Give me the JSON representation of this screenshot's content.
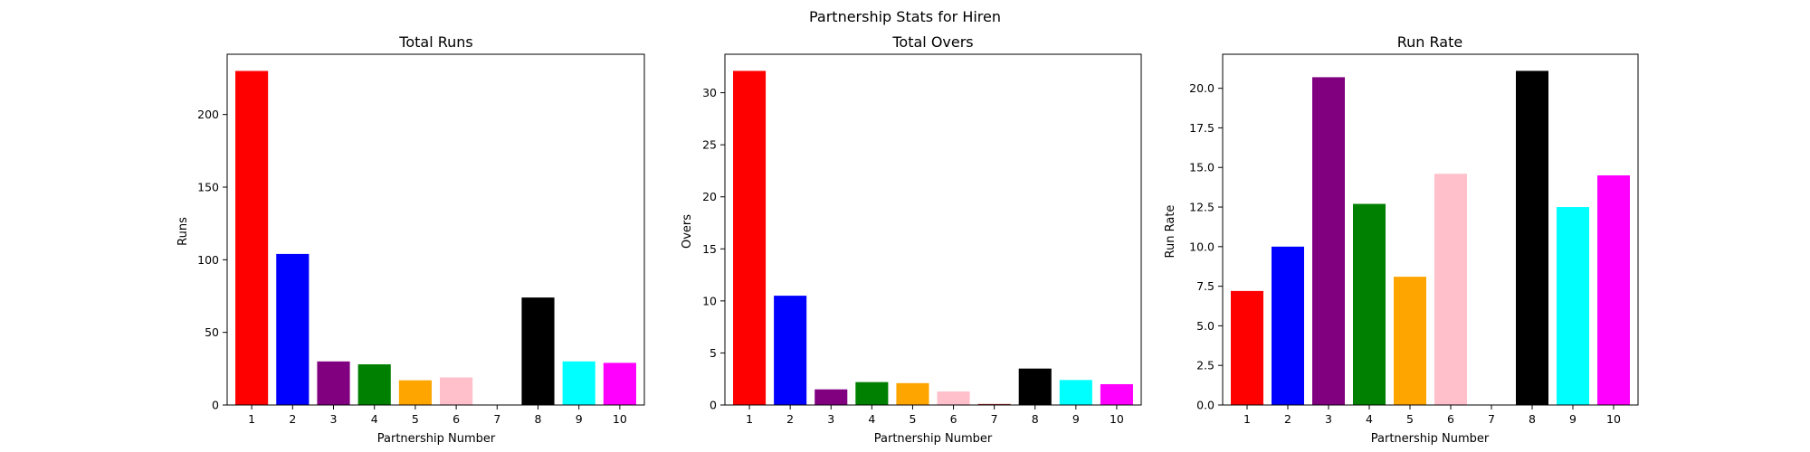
{
  "figure": {
    "suptitle": "Partnership Stats for Hiren"
  },
  "chart_data": [
    {
      "type": "bar",
      "title": "Total Runs",
      "xlabel": "Partnership Number",
      "ylabel": "Runs",
      "categories": [
        "1",
        "2",
        "3",
        "4",
        "5",
        "6",
        "7",
        "8",
        "9",
        "10"
      ],
      "values": [
        230,
        104,
        30,
        28,
        17,
        19,
        0,
        74,
        30,
        29
      ],
      "colors": [
        "#ff0000",
        "#0000ff",
        "#800080",
        "#008000",
        "#ffa500",
        "#ffc0cb",
        "#a52a2a",
        "#000000",
        "#00ffff",
        "#ff00ff"
      ],
      "ylim": [
        0,
        241.5
      ],
      "yticks": [
        0,
        50,
        100,
        150,
        200
      ],
      "ytick_labels": [
        "0",
        "50",
        "100",
        "150",
        "200"
      ],
      "grid": false
    },
    {
      "type": "bar",
      "title": "Total Overs",
      "xlabel": "Partnership Number",
      "ylabel": "Overs",
      "categories": [
        "1",
        "2",
        "3",
        "4",
        "5",
        "6",
        "7",
        "8",
        "9",
        "10"
      ],
      "values": [
        32.1,
        10.5,
        1.5,
        2.2,
        2.1,
        1.3,
        0.1,
        3.5,
        2.4,
        2.0
      ],
      "colors": [
        "#ff0000",
        "#0000ff",
        "#800080",
        "#008000",
        "#ffa500",
        "#ffc0cb",
        "#a52a2a",
        "#000000",
        "#00ffff",
        "#ff00ff"
      ],
      "ylim": [
        0,
        33.7
      ],
      "yticks": [
        0,
        5,
        10,
        15,
        20,
        25,
        30
      ],
      "ytick_labels": [
        "0",
        "5",
        "10",
        "15",
        "20",
        "25",
        "30"
      ],
      "grid": false
    },
    {
      "type": "bar",
      "title": "Run Rate",
      "xlabel": "Partnership Number",
      "ylabel": "Run Rate",
      "categories": [
        "1",
        "2",
        "3",
        "4",
        "5",
        "6",
        "7",
        "8",
        "9",
        "10"
      ],
      "values": [
        7.2,
        10.0,
        20.7,
        12.7,
        8.1,
        14.6,
        0,
        21.1,
        12.5,
        14.5
      ],
      "colors": [
        "#ff0000",
        "#0000ff",
        "#800080",
        "#008000",
        "#ffa500",
        "#ffc0cb",
        "#a52a2a",
        "#000000",
        "#00ffff",
        "#ff00ff"
      ],
      "ylim": [
        0,
        22.15
      ],
      "yticks": [
        0,
        2.5,
        5.0,
        7.5,
        10.0,
        12.5,
        15.0,
        17.5,
        20.0
      ],
      "ytick_labels": [
        "0.0",
        "2.5",
        "5.0",
        "7.5",
        "10.0",
        "12.5",
        "15.0",
        "17.5",
        "20.0"
      ],
      "grid": false
    }
  ]
}
